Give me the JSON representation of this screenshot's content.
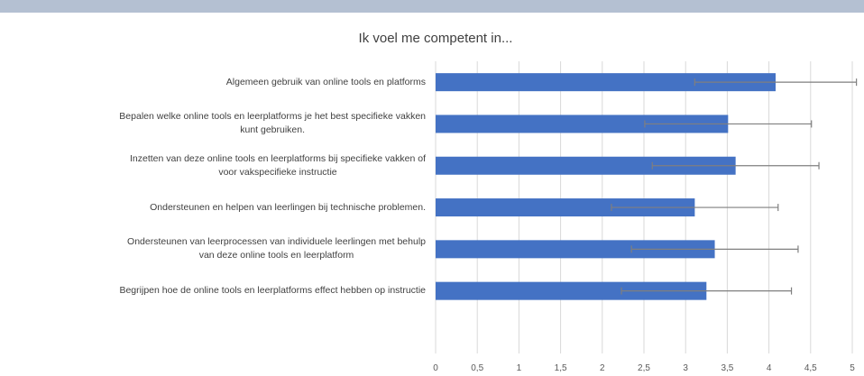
{
  "chart_data": {
    "type": "bar",
    "orientation": "horizontal",
    "title": "Ik voel me competent in...",
    "categories": [
      "Algemeen gebruik van online tools en platforms",
      "Bepalen welke online tools en leerplatforms je het best specifieke vakken\nkunt gebruiken.",
      "Inzetten van deze online tools en leerplatforms bij specifieke vakken of\nvoor vakspecifieke instructie",
      "Ondersteunen en helpen van leerlingen bij technische problemen.",
      "Ondersteunen van leerprocessen van individuele leerlingen met behulp\nvan deze online tools en leerplatform",
      "Begrijpen hoe de online tools en leerplatforms effect hebben op instructie"
    ],
    "values": [
      4.08,
      3.51,
      3.6,
      3.11,
      3.35,
      3.25
    ],
    "errors": [
      0.97,
      1.0,
      1.0,
      1.0,
      1.0,
      1.02
    ],
    "color": "#4472c4",
    "error_color": "#7f7f7f",
    "xlim": [
      0,
      5
    ],
    "xticks": [
      0,
      {
        "value": 0.5,
        "label": "0,5"
      },
      1,
      {
        "value": 1.5,
        "label": "1,5"
      },
      2,
      {
        "value": 2.5,
        "label": "2,5"
      },
      3,
      {
        "value": 3.5,
        "label": "3,5"
      },
      4,
      {
        "value": 4.5,
        "label": "4,5"
      },
      5
    ],
    "grid": true
  }
}
